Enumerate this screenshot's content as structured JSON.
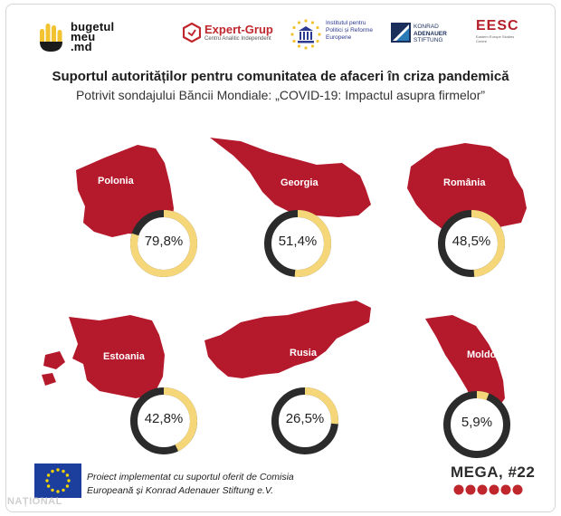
{
  "header": {
    "logo_bugetul": [
      "bugetul",
      "meu",
      ".md"
    ],
    "logo_expert_grup": {
      "name": "Expert-Grup",
      "tagline": "Centru Analitic Independent"
    },
    "logo_ipre": [
      "Institutul pentru",
      "Politici și Reforme",
      "Europene"
    ],
    "logo_kas": [
      "KONRAD",
      "ADENAUER",
      "STIFTUNG"
    ],
    "logo_eesc": {
      "name": "EESC",
      "tagline": "Eastern Europe Studies Centre"
    }
  },
  "title": "Suportul autorităților pentru comunitatea de afaceri în criza pandemică",
  "subtitle": "Potrivit sondajului Băncii Mondiale: „COVID-19: Impactul asupra firmelor”",
  "colors": {
    "country_fill": "#b5192c",
    "donut_value": "#f5d77a",
    "donut_rest": "#2b2b2b"
  },
  "chart_data": {
    "type": "donut",
    "categories": [
      "Polonia",
      "Georgia",
      "România",
      "Estoania",
      "Rusia",
      "Moldova"
    ],
    "values": [
      79.8,
      51.4,
      48.5,
      42.8,
      26.5,
      5.9
    ],
    "value_labels": [
      "79,8%",
      "51,4%",
      "48,5%",
      "42,8%",
      "26,5%",
      "5,9%"
    ],
    "unit": "%",
    "max": 100
  },
  "footer": {
    "project_text_line1": "Proiect implementat cu suportul oferit de Comisia",
    "project_text_line2": "Europeană și Konrad Adenauer Stiftung e.V.",
    "edition": "MEGA, #22",
    "watermark": "NAȚIONAL"
  }
}
